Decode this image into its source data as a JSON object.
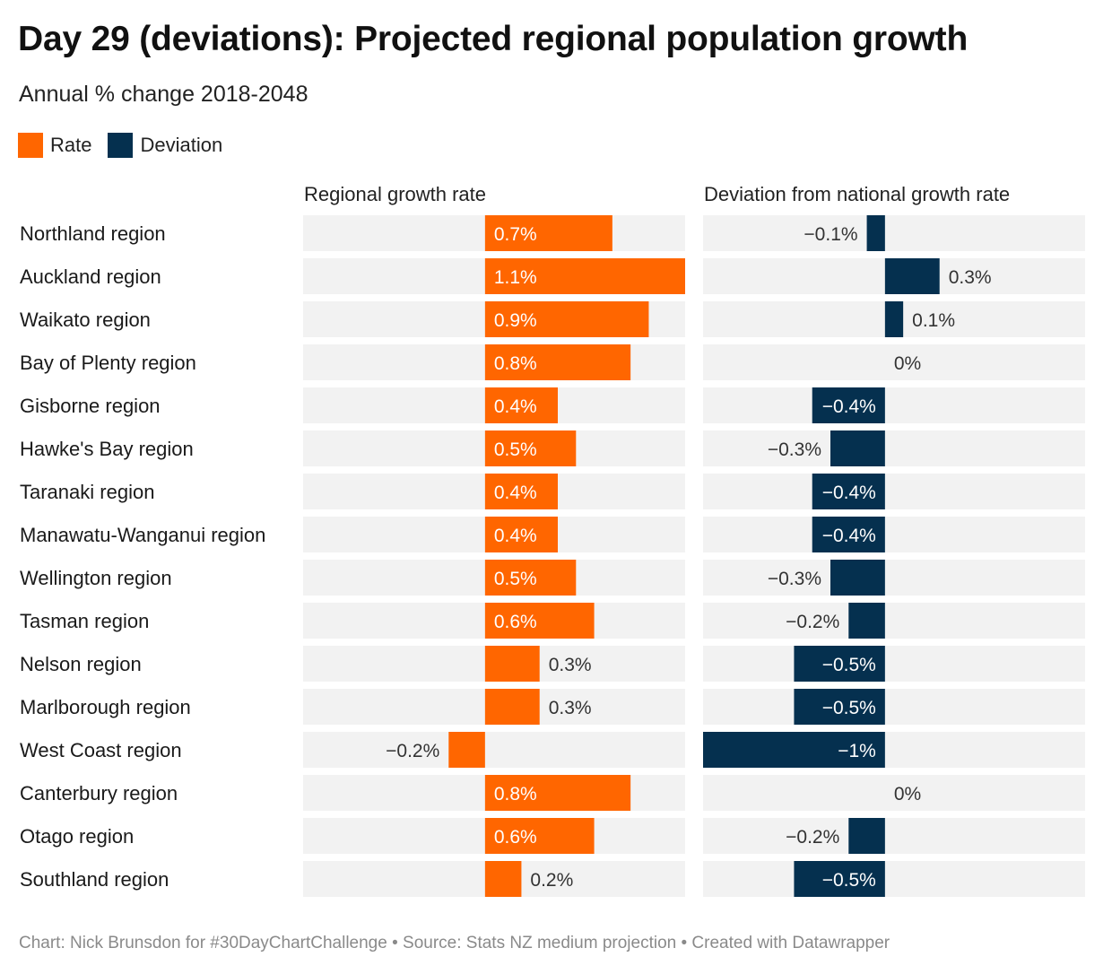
{
  "title": "Day 29 (deviations): Projected regional population growth",
  "subtitle": "Annual % change 2018-2048",
  "legend": [
    {
      "label": "Rate",
      "color": "#ff6600"
    },
    {
      "label": "Deviation",
      "color": "#05304f"
    }
  ],
  "footer": "Chart: Nick Brunsdon for #30DayChartChallenge • Source: Stats NZ medium projection • Created with Datawrapper",
  "chart_data": {
    "type": "bar",
    "categories": [
      "Northland region",
      "Auckland region",
      "Waikato region",
      "Bay of Plenty region",
      "Gisborne region",
      "Hawke's Bay region",
      "Taranaki region",
      "Manawatu-Wanganui region",
      "Wellington region",
      "Tasman region",
      "Nelson region",
      "Marlborough region",
      "West Coast region",
      "Canterbury region",
      "Otago region",
      "Southland region"
    ],
    "series": [
      {
        "name": "Rate",
        "column_title": "Regional growth rate",
        "color": "#ff6600",
        "xlim": [
          -1.0,
          1.1
        ],
        "values": [
          0.7,
          1.1,
          0.9,
          0.8,
          0.4,
          0.5,
          0.4,
          0.4,
          0.5,
          0.6,
          0.3,
          0.3,
          -0.2,
          0.8,
          0.6,
          0.2
        ],
        "labels": [
          "0.7%",
          "1.1%",
          "0.9%",
          "0.8%",
          "0.4%",
          "0.5%",
          "0.4%",
          "0.4%",
          "0.5%",
          "0.6%",
          "0.3%",
          "0.3%",
          "−0.2%",
          "0.8%",
          "0.6%",
          "0.2%"
        ]
      },
      {
        "name": "Deviation",
        "column_title": "Deviation from national growth rate",
        "color": "#05304f",
        "xlim": [
          -1.0,
          1.1
        ],
        "values": [
          -0.1,
          0.3,
          0.1,
          0,
          -0.4,
          -0.3,
          -0.4,
          -0.4,
          -0.3,
          -0.2,
          -0.5,
          -0.5,
          -1.0,
          0,
          -0.2,
          -0.5
        ],
        "labels": [
          "−0.1%",
          "0.3%",
          "0.1%",
          "0%",
          "−0.4%",
          "−0.3%",
          "−0.4%",
          "−0.4%",
          "−0.3%",
          "−0.2%",
          "−0.5%",
          "−0.5%",
          "−1%",
          "0%",
          "−0.2%",
          "−0.5%"
        ]
      }
    ],
    "background_color": "#f2f2f2",
    "grid": false,
    "legend_position": "top-left"
  }
}
